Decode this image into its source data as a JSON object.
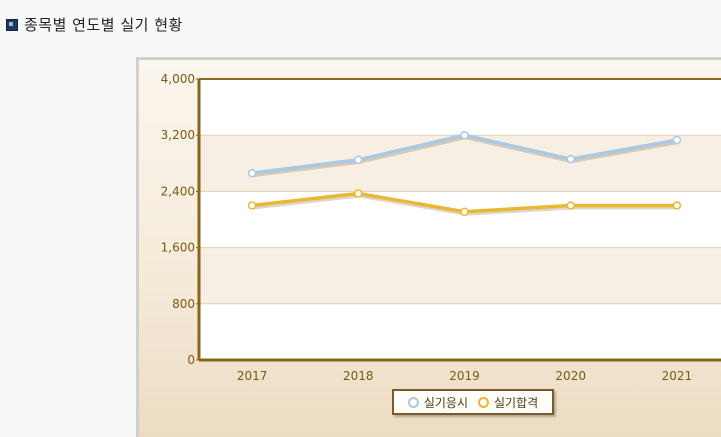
{
  "header": {
    "title": "종목별 연도별 실기 현황"
  },
  "colors": {
    "series1": "#a9c8e6",
    "series2": "#e8b832",
    "axis": "#8a6418",
    "tick_text": "#7a5a12"
  },
  "chart_data": {
    "type": "line",
    "categories": [
      "2017",
      "2018",
      "2019",
      "2020",
      "2021"
    ],
    "series": [
      {
        "name": "실기응시",
        "values": [
          2660,
          2850,
          3200,
          2860,
          3130
        ]
      },
      {
        "name": "실기합격",
        "values": [
          2200,
          2370,
          2110,
          2200,
          2200
        ]
      }
    ],
    "yticks": [
      "0",
      "800",
      "1,600",
      "2,400",
      "3,200",
      "4,000"
    ],
    "ylim": [
      0,
      4000
    ],
    "legend_position": "bottom-center",
    "grid": true
  }
}
